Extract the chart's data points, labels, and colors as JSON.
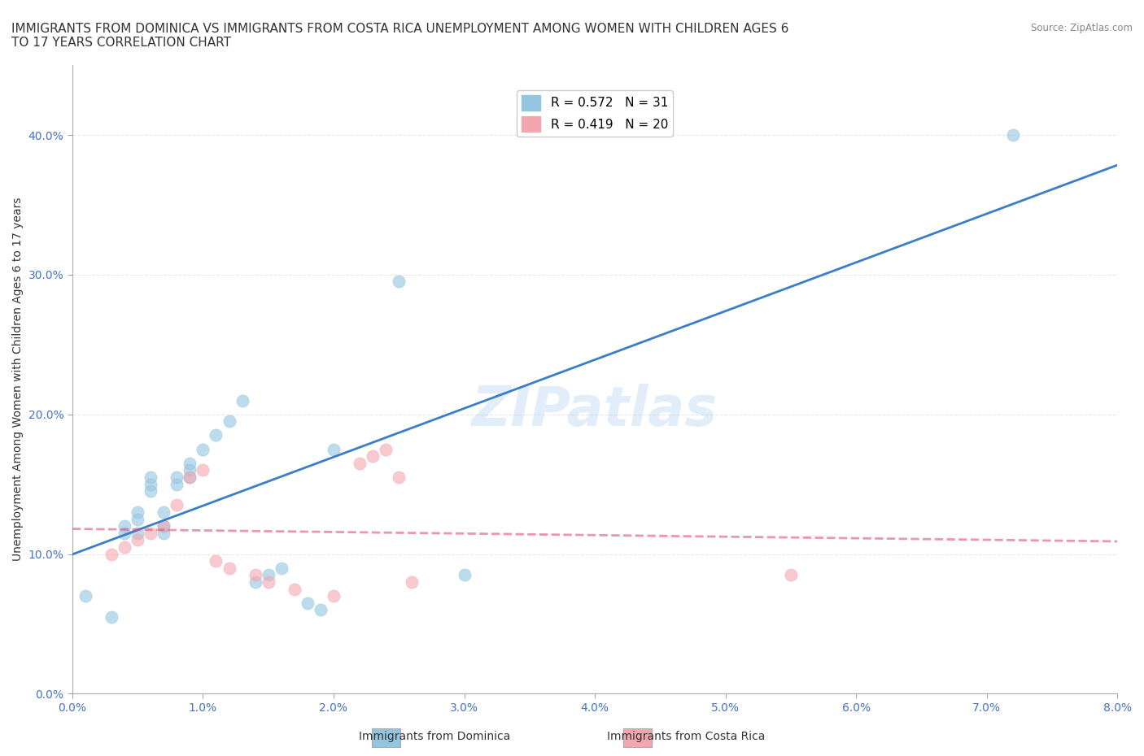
{
  "title": "IMMIGRANTS FROM DOMINICA VS IMMIGRANTS FROM COSTA RICA UNEMPLOYMENT AMONG WOMEN WITH CHILDREN AGES 6\nTO 17 YEARS CORRELATION CHART",
  "source": "Source: ZipAtlas.com",
  "xlabel_ticks": [
    "0.0%",
    "1.0%",
    "2.0%",
    "3.0%",
    "4.0%",
    "5.0%",
    "6.0%",
    "7.0%",
    "8.0%"
  ],
  "ylabel_label": "Unemployment Among Women with Children Ages 6 to 17 years",
  "xlim": [
    0.0,
    0.08
  ],
  "ylim": [
    0.0,
    0.45
  ],
  "yticks": [
    0.0,
    0.1,
    0.2,
    0.3,
    0.4
  ],
  "ytick_labels": [
    "0.0%",
    "10.0%",
    "20.0%",
    "30.0%",
    "40.0%"
  ],
  "xticks": [
    0.0,
    0.01,
    0.02,
    0.03,
    0.04,
    0.05,
    0.06,
    0.07,
    0.08
  ],
  "dominica_x": [
    0.004,
    0.004,
    0.005,
    0.005,
    0.005,
    0.006,
    0.006,
    0.006,
    0.007,
    0.007,
    0.007,
    0.008,
    0.008,
    0.009,
    0.009,
    0.009,
    0.01,
    0.011,
    0.012,
    0.013,
    0.014,
    0.015,
    0.016,
    0.018,
    0.019,
    0.02,
    0.025,
    0.03,
    0.072,
    0.001,
    0.003
  ],
  "dominica_y": [
    0.115,
    0.12,
    0.125,
    0.13,
    0.115,
    0.155,
    0.15,
    0.145,
    0.13,
    0.12,
    0.115,
    0.155,
    0.15,
    0.165,
    0.16,
    0.155,
    0.175,
    0.185,
    0.195,
    0.21,
    0.08,
    0.085,
    0.09,
    0.065,
    0.06,
    0.175,
    0.295,
    0.085,
    0.4,
    0.07,
    0.055
  ],
  "costa_rica_x": [
    0.003,
    0.004,
    0.005,
    0.006,
    0.007,
    0.008,
    0.009,
    0.01,
    0.011,
    0.012,
    0.014,
    0.015,
    0.017,
    0.02,
    0.055,
    0.022,
    0.023,
    0.024,
    0.025,
    0.026
  ],
  "costa_rica_y": [
    0.1,
    0.105,
    0.11,
    0.115,
    0.12,
    0.135,
    0.155,
    0.16,
    0.095,
    0.09,
    0.085,
    0.08,
    0.075,
    0.07,
    0.085,
    0.165,
    0.17,
    0.175,
    0.155,
    0.08
  ],
  "dominica_color": "#92C5DE",
  "costa_rica_color": "#F4A6B0",
  "dominica_line_color": "#3A7DC9",
  "costa_rica_line_color": "#E05070",
  "legend_box_color": "#FFFFFF",
  "R_dominica": 0.572,
  "N_dominica": 31,
  "R_costa_rica": 0.419,
  "N_costa_rica": 20,
  "marker_size": 120,
  "marker_alpha": 0.6,
  "title_fontsize": 11,
  "axis_label_fontsize": 10,
  "tick_fontsize": 10,
  "legend_fontsize": 11,
  "background_color": "#FFFFFF",
  "grid_color": "#DDDDDD",
  "watermark": "ZIPatlas"
}
